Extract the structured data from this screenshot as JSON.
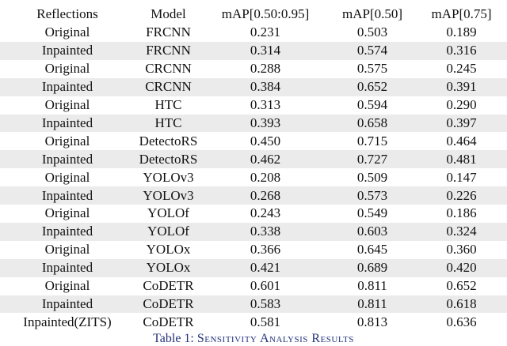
{
  "table": {
    "header": [
      "Reflections",
      "Model",
      "mAP[0.50:0.95]",
      "mAP[0.50]",
      "mAP[0.75]"
    ],
    "rows": [
      [
        "Original",
        "FRCNN",
        "0.231",
        "0.503",
        "0.189"
      ],
      [
        "Inpainted",
        "FRCNN",
        "0.314",
        "0.574",
        "0.316"
      ],
      [
        "Original",
        "CRCNN",
        "0.288",
        "0.575",
        "0.245"
      ],
      [
        "Inpainted",
        "CRCNN",
        "0.384",
        "0.652",
        "0.391"
      ],
      [
        "Original",
        "HTC",
        "0.313",
        "0.594",
        "0.290"
      ],
      [
        "Inpainted",
        "HTC",
        "0.393",
        "0.658",
        "0.397"
      ],
      [
        "Original",
        "DetectoRS",
        "0.450",
        "0.715",
        "0.464"
      ],
      [
        "Inpainted",
        "DetectoRS",
        "0.462",
        "0.727",
        "0.481"
      ],
      [
        "Original",
        "YOLOv3",
        "0.208",
        "0.509",
        "0.147"
      ],
      [
        "Inpainted",
        "YOLOv3",
        "0.268",
        "0.573",
        "0.226"
      ],
      [
        "Original",
        "YOLOf",
        "0.243",
        "0.549",
        "0.186"
      ],
      [
        "Inpainted",
        "YOLOf",
        "0.338",
        "0.603",
        "0.324"
      ],
      [
        "Original",
        "YOLOx",
        "0.366",
        "0.645",
        "0.360"
      ],
      [
        "Inpainted",
        "YOLOx",
        "0.421",
        "0.689",
        "0.420"
      ],
      [
        "Original",
        "CoDETR",
        "0.601",
        "0.811",
        "0.652"
      ],
      [
        "Inpainted",
        "CoDETR",
        "0.583",
        "0.811",
        "0.618"
      ],
      [
        "Inpainted(ZITS)",
        "CoDETR",
        "0.581",
        "0.813",
        "0.636"
      ]
    ],
    "caption": {
      "label": "Table 1:",
      "text": "Sensitivity Analysis Results"
    }
  }
}
